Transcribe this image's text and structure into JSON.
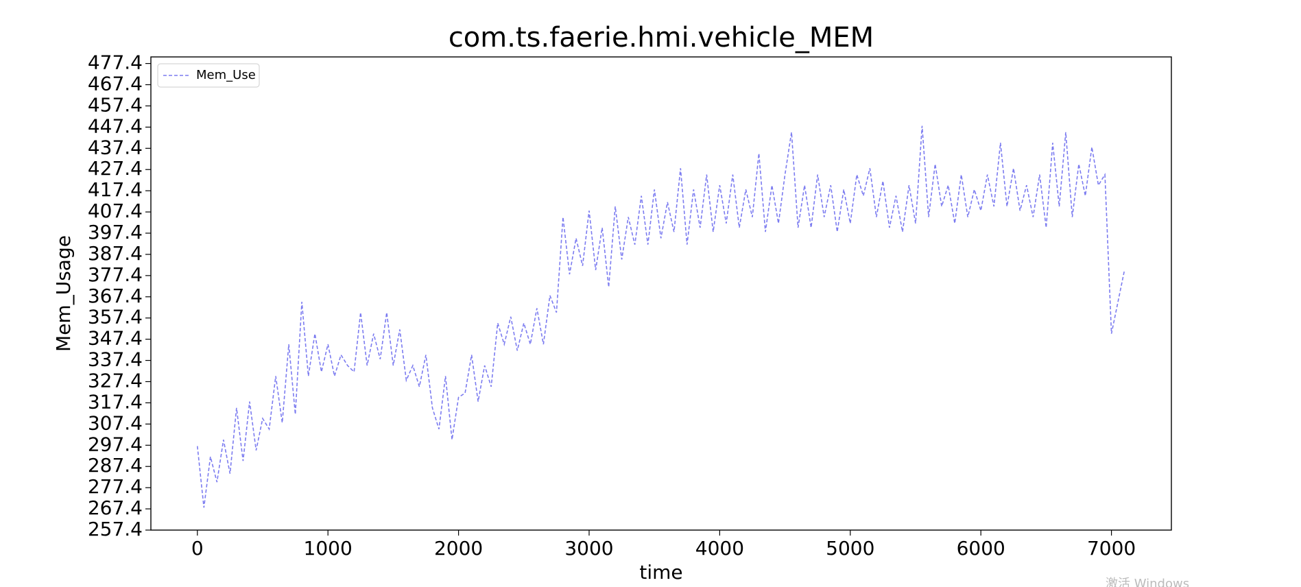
{
  "chart_data": {
    "type": "line",
    "title": "com.ts.faerie.hmi.vehicle_MEM",
    "x_label": "time",
    "y_label": "Mem_Usage",
    "legend": "upper left",
    "watermark": "激活 Windows",
    "x": [
      0,
      50,
      100,
      150,
      200,
      250,
      300,
      350,
      400,
      450,
      500,
      550,
      600,
      650,
      700,
      750,
      800,
      850,
      900,
      950,
      1000,
      1050,
      1100,
      1150,
      1200,
      1250,
      1300,
      1350,
      1400,
      1450,
      1500,
      1550,
      1600,
      1650,
      1700,
      1750,
      1800,
      1850,
      1900,
      1950,
      2000,
      2050,
      2100,
      2150,
      2200,
      2250,
      2300,
      2350,
      2400,
      2450,
      2500,
      2550,
      2600,
      2650,
      2700,
      2750,
      2800,
      2850,
      2900,
      2950,
      3000,
      3050,
      3100,
      3150,
      3200,
      3250,
      3300,
      3350,
      3400,
      3450,
      3500,
      3550,
      3600,
      3650,
      3700,
      3750,
      3800,
      3850,
      3900,
      3950,
      4000,
      4050,
      4100,
      4150,
      4200,
      4250,
      4300,
      4350,
      4400,
      4450,
      4500,
      4550,
      4600,
      4650,
      4700,
      4750,
      4800,
      4850,
      4900,
      4950,
      5000,
      5050,
      5100,
      5150,
      5200,
      5250,
      5300,
      5350,
      5400,
      5450,
      5500,
      5550,
      5600,
      5650,
      5700,
      5750,
      5800,
      5850,
      5900,
      5950,
      6000,
      6050,
      6100,
      6150,
      6200,
      6250,
      6300,
      6350,
      6400,
      6450,
      6500,
      6550,
      6600,
      6650,
      6700,
      6750,
      6800,
      6850,
      6900,
      6950,
      7000,
      7050,
      7100
    ],
    "series": [
      {
        "name": "Mem_Use",
        "color": "#7b7bf0",
        "dashed": true,
        "values": [
          297,
          268,
          292,
          280,
          300,
          284,
          315,
          290,
          318,
          295,
          310,
          305,
          330,
          308,
          345,
          312,
          365,
          330,
          350,
          332,
          345,
          330,
          340,
          335,
          332,
          360,
          335,
          350,
          338,
          360,
          335,
          352,
          328,
          335,
          325,
          340,
          315,
          305,
          330,
          300,
          320,
          322,
          340,
          318,
          335,
          325,
          355,
          345,
          358,
          342,
          355,
          345,
          362,
          345,
          368,
          360,
          405,
          378,
          395,
          382,
          408,
          380,
          400,
          372,
          410,
          385,
          405,
          392,
          415,
          392,
          418,
          395,
          412,
          398,
          428,
          392,
          418,
          400,
          425,
          398,
          420,
          402,
          425,
          400,
          418,
          405,
          435,
          398,
          420,
          402,
          425,
          445,
          400,
          420,
          400,
          425,
          405,
          420,
          398,
          418,
          402,
          425,
          415,
          428,
          405,
          422,
          400,
          415,
          398,
          420,
          402,
          448,
          405,
          430,
          410,
          420,
          402,
          425,
          405,
          418,
          408,
          425,
          410,
          440,
          410,
          428,
          408,
          420,
          405,
          425,
          400,
          440,
          410,
          445,
          405,
          430,
          415,
          438,
          420,
          425,
          350,
          365,
          380
        ]
      }
    ],
    "xlim": [
      -356,
      7459
    ],
    "xticks": [
      0,
      1000,
      2000,
      3000,
      4000,
      5000,
      6000,
      7000
    ],
    "ylim": [
      257.4,
      480.5
    ],
    "yticks": [
      257.4,
      267.4,
      277.4,
      287.4,
      297.4,
      307.4,
      317.4,
      327.4,
      337.4,
      347.4,
      357.4,
      367.4,
      377.4,
      387.4,
      397.4,
      407.4,
      417.4,
      427.4,
      437.4,
      447.4,
      457.4,
      467.4,
      477.4
    ],
    "grid": false
  }
}
